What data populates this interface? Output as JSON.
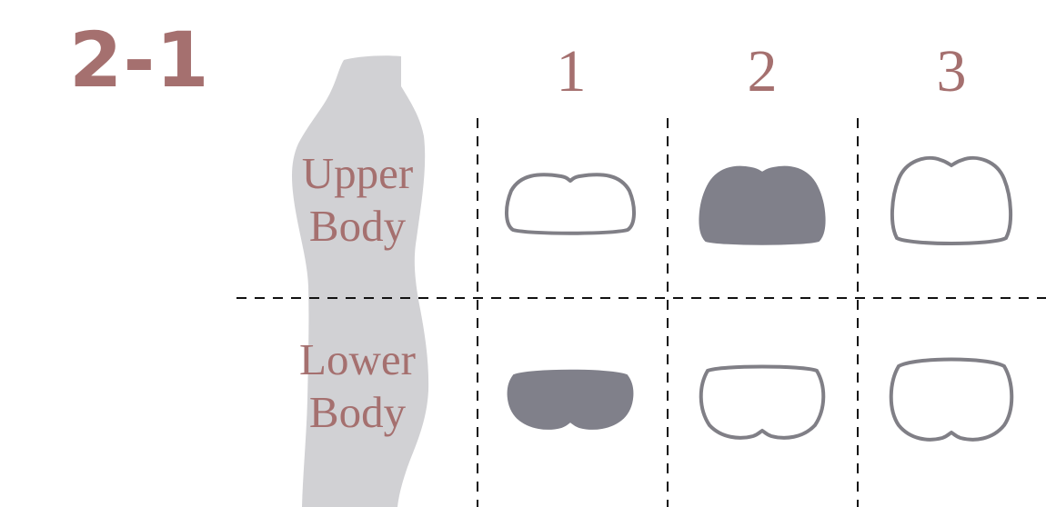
{
  "figure_label": "2-1",
  "columns": [
    "1",
    "2",
    "3"
  ],
  "rows": [
    {
      "line1": "Upper",
      "line2": "Body"
    },
    {
      "line1": "Lower",
      "line2": "Body"
    }
  ],
  "cells": [
    {
      "row": "upper",
      "col": "1",
      "state": "outline"
    },
    {
      "row": "upper",
      "col": "2",
      "state": "filled"
    },
    {
      "row": "upper",
      "col": "3",
      "state": "outline"
    },
    {
      "row": "lower",
      "col": "1",
      "state": "filled"
    },
    {
      "row": "lower",
      "col": "2",
      "state": "outline"
    },
    {
      "row": "lower",
      "col": "3",
      "state": "outline"
    }
  ],
  "colors": {
    "label": "#a5706f",
    "silhouette": "#d1d1d4",
    "shape_fill": "#80808a",
    "shape_stroke": "#807f86"
  }
}
